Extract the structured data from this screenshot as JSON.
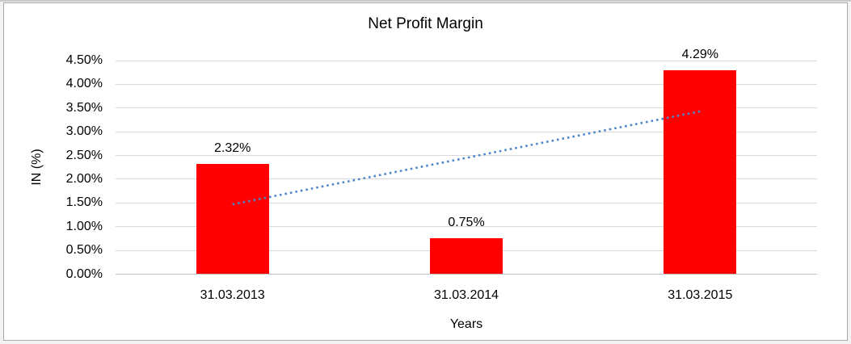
{
  "window": {
    "background_color": "#f2f2f2",
    "frame_border_color": "#a8a8a8"
  },
  "chart_data": {
    "type": "bar",
    "title": "Net Profit Margin",
    "xlabel": "Years",
    "ylabel": "IN (%)",
    "categories": [
      "31.03.2013",
      "31.03.2014",
      "31.03.2015"
    ],
    "values": [
      2.32,
      0.75,
      4.29
    ],
    "data_labels": [
      "2.32%",
      "0.75%",
      "4.29%"
    ],
    "y_ticks": [
      "0.00%",
      "0.50%",
      "1.00%",
      "1.50%",
      "2.00%",
      "2.50%",
      "3.00%",
      "3.50%",
      "4.00%",
      "4.50%"
    ],
    "ylim": [
      0,
      4.5
    ],
    "y_tick_step": 0.5,
    "grid": true,
    "legend": "none",
    "bar_color": "#ff0000",
    "gridline_color": "#d9d9d9",
    "axis_line_color": "#bfbfbf",
    "text_color": "#000000",
    "trendline": {
      "type": "linear",
      "style": "dotted",
      "color": "#4e86c8",
      "start_category_index": 0,
      "start_value": 1.47,
      "end_category_index": 2,
      "end_value": 3.43
    }
  }
}
